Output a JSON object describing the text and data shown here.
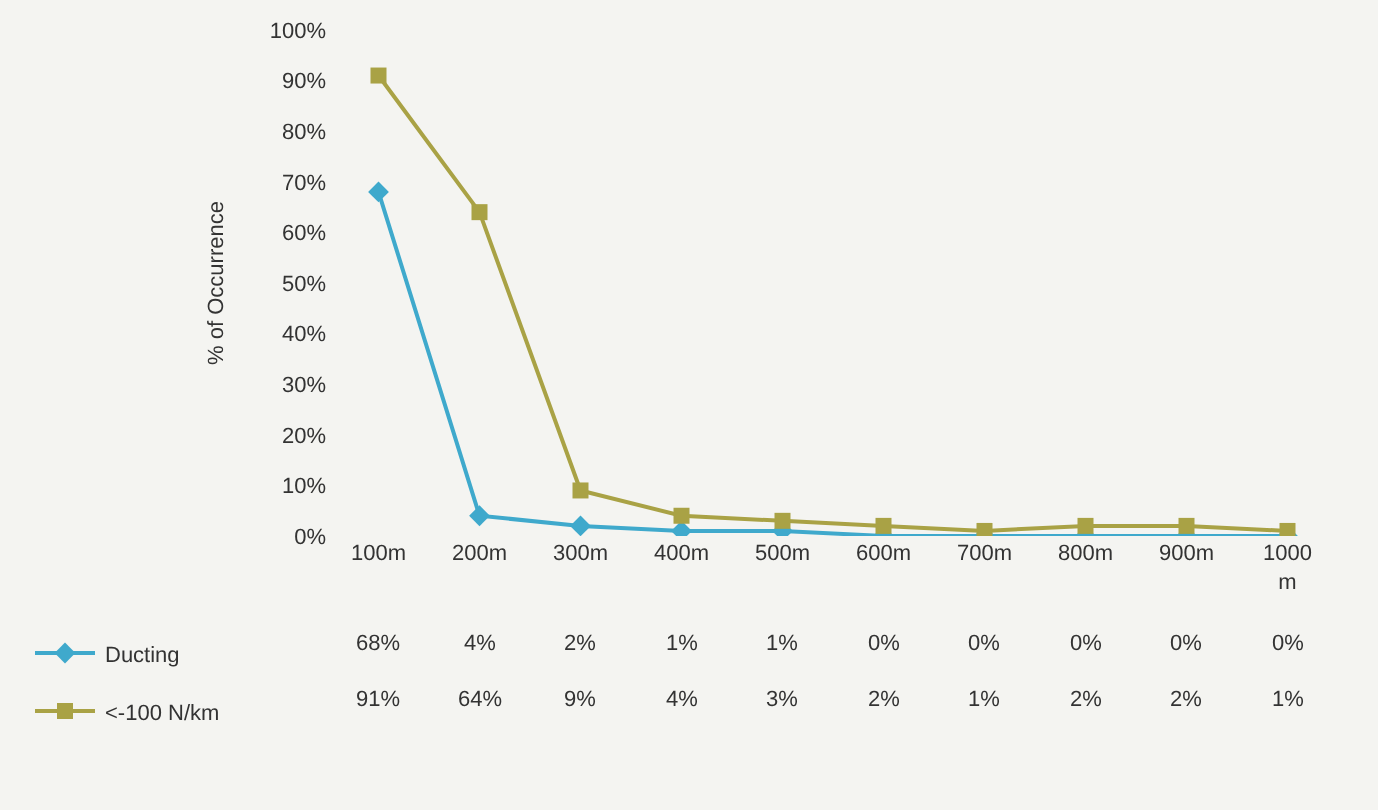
{
  "chart_data": {
    "type": "line",
    "ylabel": "% of Occurrence",
    "categories": [
      "100m",
      "200m",
      "300m",
      "400m",
      "500m",
      "600m",
      "700m",
      "800m",
      "900m",
      "1000 m"
    ],
    "series": [
      {
        "name": "Ducting",
        "color": "#3fa9cc",
        "marker": "diamond",
        "values": [
          68,
          4,
          2,
          1,
          1,
          0,
          0,
          0,
          0,
          0
        ],
        "value_labels": [
          "68%",
          "4%",
          "2%",
          "1%",
          "1%",
          "0%",
          "0%",
          "0%",
          "0%",
          "0%"
        ]
      },
      {
        "name": "<-100 N/km",
        "color": "#a9a245",
        "marker": "square",
        "values": [
          91,
          64,
          9,
          4,
          3,
          2,
          1,
          2,
          2,
          1
        ],
        "value_labels": [
          "91%",
          "64%",
          "9%",
          "4%",
          "3%",
          "2%",
          "1%",
          "2%",
          "2%",
          "1%"
        ]
      }
    ],
    "ylim": [
      0,
      100
    ],
    "yticks": [
      {
        "value": 0,
        "label": "0%"
      },
      {
        "value": 10,
        "label": "10%"
      },
      {
        "value": 20,
        "label": "20%"
      },
      {
        "value": 30,
        "label": "30%"
      },
      {
        "value": 40,
        "label": "40%"
      },
      {
        "value": 50,
        "label": "50%"
      },
      {
        "value": 60,
        "label": "60%"
      },
      {
        "value": 70,
        "label": "70%"
      },
      {
        "value": 80,
        "label": "80%"
      },
      {
        "value": 90,
        "label": "90%"
      },
      {
        "value": 100,
        "label": "100%"
      }
    ],
    "grid": false,
    "legend": "bottom left",
    "line_style": "solid"
  }
}
